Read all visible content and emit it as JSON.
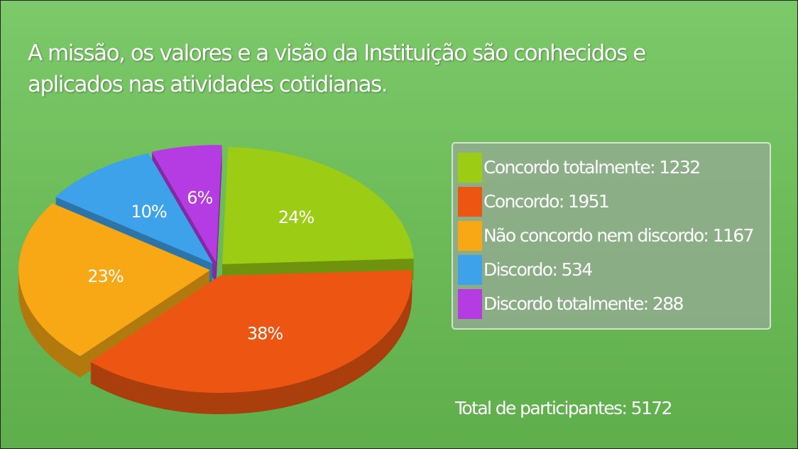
{
  "chart_data": {
    "type": "pie",
    "title": "A missão, os valores e a visão da Instituição são conhecidos e aplicados nas atividades cotidianas.",
    "categories": [
      "Concordo totalmente: 1232",
      "Concordo: 1951",
      "Não concordo nem discordo: 1167",
      "Discordo: 534",
      "Discordo totalmente: 288"
    ],
    "values": [
      24,
      38,
      23,
      10,
      6
    ],
    "value_labels": [
      "24%",
      "38%",
      "23%",
      "10%",
      "6%"
    ],
    "colors": [
      "#9ccc14",
      "#ec5612",
      "#f7a814",
      "#3ea2ea",
      "#b43ce2"
    ],
    "annotation": "Total de participantes: 5172",
    "legend": "right"
  }
}
